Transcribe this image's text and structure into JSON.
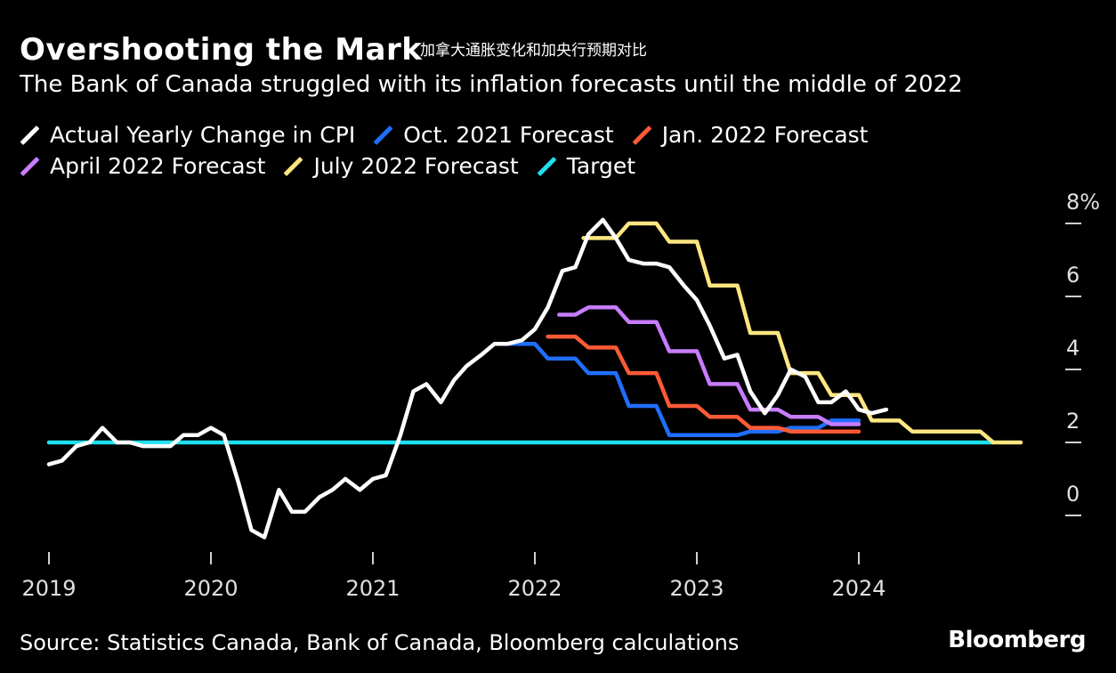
{
  "header": {
    "title": "Overshooting the Mark",
    "title_note": "加拿大通胀变化和加央行预期对比",
    "subtitle": "The Bank of Canada struggled with its inflation forecasts until the middle of 2022"
  },
  "legend": {
    "row1": [
      {
        "label": "Actual Yearly Change in CPI",
        "color": "#ffffff"
      },
      {
        "label": "Oct. 2021 Forecast",
        "color": "#1f6fff"
      },
      {
        "label": "Jan. 2022 Forecast",
        "color": "#ff5a36"
      }
    ],
    "row2": [
      {
        "label": "April 2022 Forecast",
        "color": "#c77dff"
      },
      {
        "label": "July 2022 Forecast",
        "color": "#ffe680"
      },
      {
        "label": "Target",
        "color": "#1ee0f0"
      }
    ]
  },
  "footer": {
    "source": "Source: Statistics Canada, Bank of Canada, Bloomberg calculations",
    "brand": "Bloomberg"
  },
  "chart_data": {
    "type": "line",
    "xlim": [
      2019.0,
      2025.0
    ],
    "ylim": [
      -1.0,
      8.0
    ],
    "y_ticks": [
      0,
      2,
      4,
      6,
      8
    ],
    "y_tick_labels": [
      "0",
      "2",
      "4",
      "6",
      "8%"
    ],
    "y_axis_position": "right",
    "x_ticks": [
      2019,
      2020,
      2021,
      2022,
      2023,
      2024
    ],
    "x_tick_labels": [
      "2019",
      "2020",
      "2021",
      "2022",
      "2023",
      "2024"
    ],
    "grid": false,
    "legend_position": "top-left",
    "series": [
      {
        "name": "Actual Yearly Change in CPI",
        "color": "#ffffff",
        "x": [
          2019.0,
          2019.08,
          2019.17,
          2019.25,
          2019.33,
          2019.42,
          2019.5,
          2019.58,
          2019.67,
          2019.75,
          2019.83,
          2019.92,
          2020.0,
          2020.08,
          2020.17,
          2020.25,
          2020.33,
          2020.42,
          2020.5,
          2020.58,
          2020.67,
          2020.75,
          2020.83,
          2020.92,
          2021.0,
          2021.08,
          2021.17,
          2021.25,
          2021.33,
          2021.42,
          2021.5,
          2021.58,
          2021.67,
          2021.75,
          2021.83,
          2021.92,
          2022.0,
          2022.08,
          2022.17,
          2022.25,
          2022.33,
          2022.42,
          2022.5,
          2022.58,
          2022.67,
          2022.75,
          2022.83,
          2022.92,
          2023.0,
          2023.08,
          2023.17,
          2023.25,
          2023.33,
          2023.42,
          2023.5,
          2023.58,
          2023.67,
          2023.75,
          2023.83,
          2023.92,
          2024.0,
          2024.08,
          2024.17
        ],
        "y": [
          1.4,
          1.5,
          1.9,
          2.0,
          2.4,
          2.0,
          2.0,
          1.9,
          1.9,
          1.9,
          2.2,
          2.2,
          2.4,
          2.2,
          0.9,
          -0.4,
          -0.6,
          0.7,
          0.1,
          0.1,
          0.5,
          0.7,
          1.0,
          0.7,
          1.0,
          1.1,
          2.2,
          3.4,
          3.6,
          3.1,
          3.7,
          4.1,
          4.4,
          4.7,
          4.7,
          4.8,
          5.1,
          5.7,
          6.7,
          6.8,
          7.7,
          8.1,
          7.6,
          7.0,
          6.9,
          6.9,
          6.8,
          6.3,
          5.9,
          5.2,
          4.3,
          4.4,
          3.4,
          2.8,
          3.3,
          4.0,
          3.8,
          3.1,
          3.1,
          3.4,
          2.9,
          2.8,
          2.9
        ]
      },
      {
        "name": "Oct. 2021 Forecast",
        "color": "#1f6fff",
        "x": [
          2021.83,
          2022.0,
          2022.08,
          2022.25,
          2022.33,
          2022.5,
          2022.58,
          2022.75,
          2022.83,
          2023.0,
          2023.08,
          2023.25,
          2023.33,
          2023.5,
          2023.58,
          2023.75,
          2023.83,
          2024.0
        ],
        "y": [
          4.7,
          4.7,
          4.3,
          4.3,
          3.9,
          3.9,
          3.0,
          3.0,
          2.2,
          2.2,
          2.2,
          2.2,
          2.3,
          2.3,
          2.4,
          2.4,
          2.6,
          2.6
        ]
      },
      {
        "name": "Jan. 2022 Forecast",
        "color": "#ff5a36",
        "x": [
          2022.08,
          2022.25,
          2022.33,
          2022.5,
          2022.58,
          2022.75,
          2022.83,
          2023.0,
          2023.08,
          2023.25,
          2023.33,
          2023.5,
          2023.58,
          2023.75,
          2023.83,
          2024.0
        ],
        "y": [
          4.9,
          4.9,
          4.6,
          4.6,
          3.9,
          3.9,
          3.0,
          3.0,
          2.7,
          2.7,
          2.4,
          2.4,
          2.3,
          2.3,
          2.3,
          2.3
        ]
      },
      {
        "name": "April 2022 Forecast",
        "color": "#c77dff",
        "x": [
          2022.15,
          2022.25,
          2022.33,
          2022.5,
          2022.58,
          2022.75,
          2022.83,
          2023.0,
          2023.08,
          2023.25,
          2023.33,
          2023.5,
          2023.58,
          2023.75,
          2023.83,
          2024.0
        ],
        "y": [
          5.5,
          5.5,
          5.7,
          5.7,
          5.3,
          5.3,
          4.5,
          4.5,
          3.6,
          3.6,
          2.9,
          2.9,
          2.7,
          2.7,
          2.5,
          2.5
        ]
      },
      {
        "name": "July 2022 Forecast",
        "color": "#ffe680",
        "x": [
          2022.3,
          2022.5,
          2022.58,
          2022.75,
          2022.83,
          2023.0,
          2023.08,
          2023.25,
          2023.33,
          2023.5,
          2023.58,
          2023.75,
          2023.83,
          2024.0,
          2024.08,
          2024.25,
          2024.33,
          2024.5,
          2024.58,
          2024.75,
          2024.83,
          2025.0
        ],
        "y": [
          7.6,
          7.6,
          8.0,
          8.0,
          7.5,
          7.5,
          6.3,
          6.3,
          5.0,
          5.0,
          3.9,
          3.9,
          3.3,
          3.3,
          2.6,
          2.6,
          2.3,
          2.3,
          2.3,
          2.3,
          2.0,
          2.0
        ]
      },
      {
        "name": "Target",
        "color": "#1ee0f0",
        "x": [
          2019.0,
          2024.83
        ],
        "y": [
          2.0,
          2.0
        ]
      }
    ]
  }
}
